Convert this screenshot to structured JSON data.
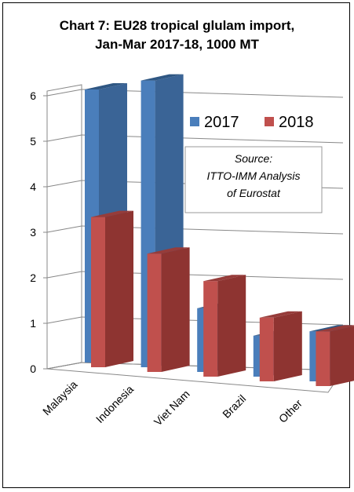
{
  "chart_data": {
    "type": "bar",
    "title_line1": "Chart 7: EU28 tropical glulam import,",
    "title_line2": "Jan-Mar 2017-18, 1000 MT",
    "categories": [
      "Malaysia",
      "Indonesia",
      "Viet Nam",
      "Brazil",
      "Other"
    ],
    "series": [
      {
        "name": "2017",
        "values": [
          6.0,
          6.3,
          1.4,
          0.9,
          1.1
        ],
        "color": "#4a7ebb",
        "top_color": "#2f5783",
        "side_color": "#3a6496"
      },
      {
        "name": "2018",
        "values": [
          3.3,
          2.6,
          2.1,
          1.4,
          1.2
        ],
        "color": "#c0504d",
        "top_color": "#963c3a",
        "side_color": "#8e3431"
      }
    ],
    "y_ticks": [
      "0",
      "1",
      "2",
      "3",
      "4",
      "5",
      "6"
    ],
    "ylim": [
      0,
      6
    ],
    "grid": true,
    "legend_position": "top-right",
    "source_lines": [
      "Source:",
      "ITTO-IMM Analysis",
      "of Eurostat"
    ]
  }
}
